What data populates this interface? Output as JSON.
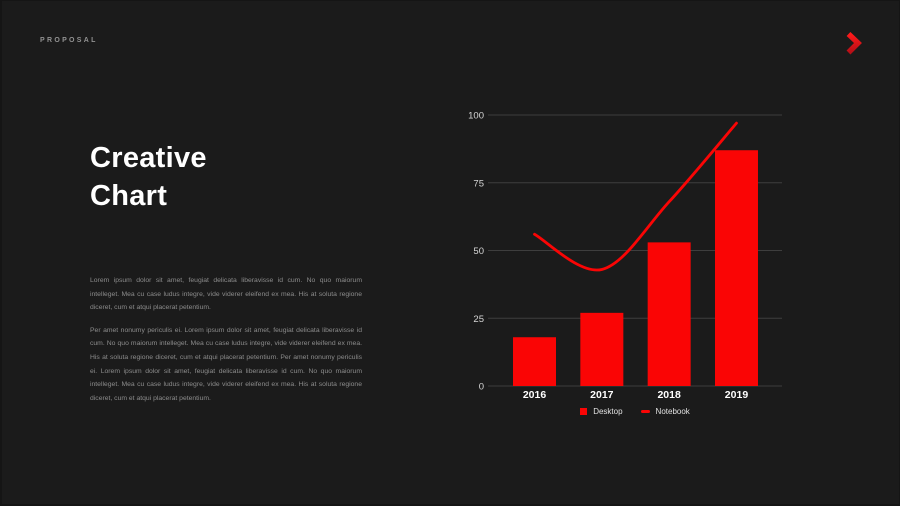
{
  "header": {
    "brand": "PROPOSAL",
    "next_icon": "chevron-right-icon"
  },
  "main": {
    "title_line1": "Creative",
    "title_line2": "Chart",
    "paragraph1": "Lorem ipsum dolor sit amet, feugiat delicata liberavisse id cum. No quo maiorum intelleget. Mea cu case ludus integre, vide viderer eleifend ex mea. His at soluta regione diceret, cum et atqui placerat petentium.",
    "paragraph2": "Per amet nonumy periculis ei. Lorem ipsum dolor sit amet, feugiat delicata liberavisse id cum. No quo maiorum intelleget. Mea cu case ludus integre, vide viderer eleifend ex mea. His at soluta regione diceret, cum et atqui placerat petentium. Per amet nonumy periculis ei. Lorem ipsum dolor sit amet, feugiat delicata liberavisse id cum. No quo maiorum intelleget. Mea cu case ludus integre, vide viderer eleifend ex mea. His at soluta regione diceret, cum et atqui placerat petentium."
  },
  "chart_data": {
    "type": "bar",
    "categories": [
      "2016",
      "2017",
      "2018",
      "2019"
    ],
    "series": [
      {
        "name": "Desktop",
        "type": "bar",
        "color": "#fa0505",
        "values": [
          18,
          27,
          53,
          87
        ]
      },
      {
        "name": "Notebook",
        "type": "line",
        "color": "#fa0505",
        "values": [
          56,
          43,
          68,
          97
        ]
      }
    ],
    "title": "",
    "xlabel": "",
    "ylabel": "",
    "ylim": [
      0,
      100
    ],
    "y_ticks": [
      0,
      25,
      50,
      75,
      100
    ],
    "grid": true,
    "legend_position": "bottom"
  },
  "colors": {
    "background": "#1b1b1b",
    "accent": "#fa0505",
    "arrow_red": "#e01420",
    "gridline": "#3e3e3e",
    "title_text": "#ffffff",
    "body_text": "#8c8c8c",
    "tick_text": "#d6d6d6"
  }
}
